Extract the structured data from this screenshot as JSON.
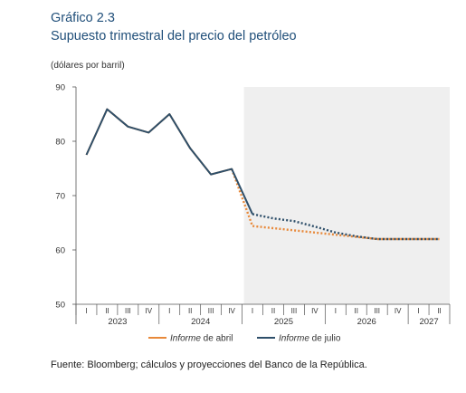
{
  "title_line1": "Gráfico 2.3",
  "title_line2": "Supuesto trimestral del precio del petróleo",
  "unit": "(dólares por barril)",
  "source": "Fuente: Bloomberg; cálculos y proyecciones del Banco de la República.",
  "colors": {
    "abril": "#e8893a",
    "julio": "#2e4f6a",
    "shade": "#efefef"
  },
  "chart_data": {
    "type": "line",
    "ylim": [
      50,
      90
    ],
    "yticks": [
      50,
      60,
      70,
      80,
      90
    ],
    "x": [
      "I 2023",
      "II 2023",
      "III 2023",
      "IV 2023",
      "I 2024",
      "II 2024",
      "III 2024",
      "IV 2024",
      "I 2025",
      "II 2025",
      "III 2025",
      "IV 2025",
      "I 2026",
      "II 2026",
      "III 2026",
      "IV 2026",
      "I 2027",
      "II 2027"
    ],
    "quarter_labels": [
      "I",
      "II",
      "III",
      "IV",
      "I",
      "II",
      "III",
      "IV",
      "I",
      "II",
      "III",
      "IV",
      "I",
      "II",
      "III",
      "IV",
      "I",
      "II"
    ],
    "year_labels": [
      {
        "label": "2023",
        "start": 0,
        "end": 3
      },
      {
        "label": "2024",
        "start": 4,
        "end": 7
      },
      {
        "label": "2025",
        "start": 8,
        "end": 11
      },
      {
        "label": "2026",
        "start": 12,
        "end": 15
      },
      {
        "label": "2027",
        "start": 16,
        "end": 17
      }
    ],
    "projection_start_index": 8,
    "series": [
      {
        "name": "Informe de abril",
        "color": "#e8893a",
        "historical": [
          77.5,
          85.9,
          82.7,
          81.6,
          85.0,
          78.7,
          73.9,
          74.9,
          null,
          null,
          null,
          null,
          null,
          null,
          null,
          null,
          null,
          null
        ],
        "projection": [
          null,
          null,
          null,
          null,
          null,
          null,
          null,
          74.9,
          64.4,
          64.0,
          63.6,
          63.2,
          62.8,
          62.4,
          62.0,
          62.0,
          62.0,
          62.0
        ]
      },
      {
        "name": "Informe de julio",
        "color": "#2e4f6a",
        "historical": [
          77.5,
          85.9,
          82.7,
          81.6,
          85.0,
          78.7,
          73.9,
          74.9,
          66.6,
          null,
          null,
          null,
          null,
          null,
          null,
          null,
          null,
          null
        ],
        "projection": [
          null,
          null,
          null,
          null,
          null,
          null,
          null,
          null,
          66.6,
          65.8,
          65.3,
          64.3,
          63.2,
          62.5,
          62.0,
          62.0,
          62.0,
          62.0
        ]
      }
    ]
  }
}
